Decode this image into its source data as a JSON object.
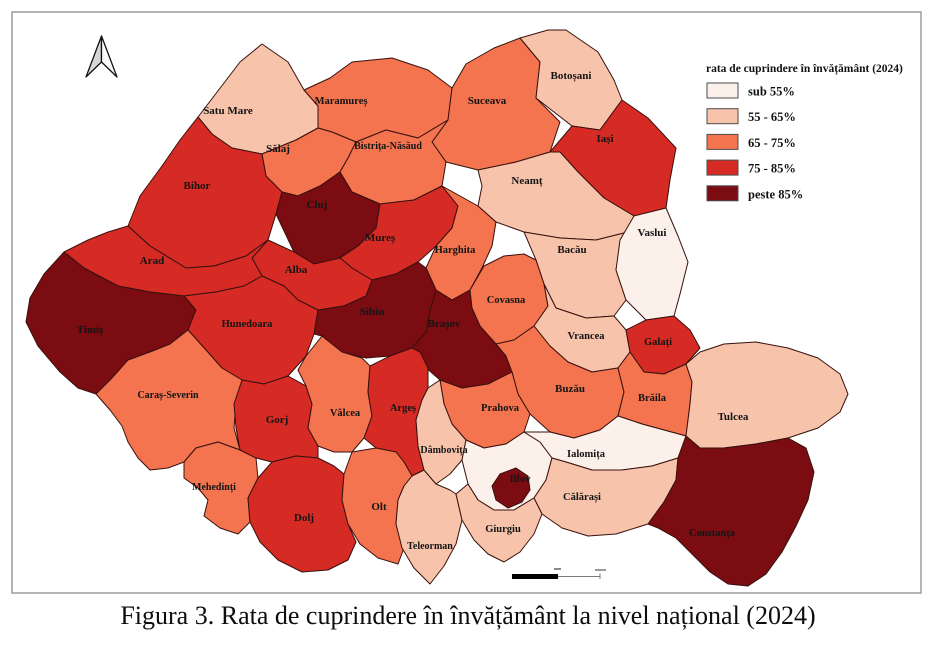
{
  "figure": {
    "caption": "Figura 3. Rata de cuprindere în învățământ la nivel național (2024)"
  },
  "legend": {
    "title": "rata de cuprindere în învățământ (2024)",
    "classes": [
      {
        "id": "c1",
        "label": "sub 55%",
        "color": "#FCF0EA"
      },
      {
        "id": "c2",
        "label": "55 - 65%",
        "color": "#F7C4AB"
      },
      {
        "id": "c3",
        "label": "65 - 75%",
        "color": "#F3744E"
      },
      {
        "id": "c4",
        "label": "75 - 85%",
        "color": "#D52B24"
      },
      {
        "id": "c5",
        "label": "peste 85%",
        "color": "#7A0C12"
      }
    ]
  },
  "map": {
    "border_color": "#38100D",
    "counties": [
      {
        "id": "satu-mare",
        "label": "Satu Mare",
        "class": "c2"
      },
      {
        "id": "maramures",
        "label": "Maramureș",
        "class": "c3"
      },
      {
        "id": "suceava",
        "label": "Suceava",
        "class": "c3"
      },
      {
        "id": "botosani",
        "label": "Botoșani",
        "class": "c2"
      },
      {
        "id": "iasi",
        "label": "Iași",
        "class": "c4"
      },
      {
        "id": "salaj",
        "label": "Sălaj",
        "class": "c3"
      },
      {
        "id": "bistrita-nasaud",
        "label": "Bistrița-Năsăud",
        "class": "c3"
      },
      {
        "id": "neamt",
        "label": "Neamț",
        "class": "c2"
      },
      {
        "id": "bacau",
        "label": "Bacău",
        "class": "c2"
      },
      {
        "id": "vaslui",
        "label": "Vaslui",
        "class": "c1"
      },
      {
        "id": "bihor",
        "label": "Bihor",
        "class": "c4"
      },
      {
        "id": "cluj",
        "label": "Cluj",
        "class": "c5"
      },
      {
        "id": "mures",
        "label": "Mureș",
        "class": "c4"
      },
      {
        "id": "harghita",
        "label": "Harghita",
        "class": "c3"
      },
      {
        "id": "alba",
        "label": "Alba",
        "class": "c4"
      },
      {
        "id": "arad",
        "label": "Arad",
        "class": "c4"
      },
      {
        "id": "timis",
        "label": "Timiș",
        "class": "c5"
      },
      {
        "id": "hunedoara",
        "label": "Hunedoara",
        "class": "c4"
      },
      {
        "id": "caras-severin",
        "label": "Caraș-Severin",
        "class": "c3"
      },
      {
        "id": "sibiu",
        "label": "Sibiu",
        "class": "c5"
      },
      {
        "id": "brasov",
        "label": "Brașov",
        "class": "c5"
      },
      {
        "id": "covasna",
        "label": "Covasna",
        "class": "c3"
      },
      {
        "id": "vrancea",
        "label": "Vrancea",
        "class": "c2"
      },
      {
        "id": "galati",
        "label": "Galați",
        "class": "c4"
      },
      {
        "id": "buzau",
        "label": "Buzău",
        "class": "c3"
      },
      {
        "id": "prahova",
        "label": "Prahova",
        "class": "c3"
      },
      {
        "id": "braila",
        "label": "Brăila",
        "class": "c3"
      },
      {
        "id": "tulcea",
        "label": "Tulcea",
        "class": "c2"
      },
      {
        "id": "mehedinti",
        "label": "Mehedinți",
        "class": "c3"
      },
      {
        "id": "gorj",
        "label": "Gorj",
        "class": "c4"
      },
      {
        "id": "valcea",
        "label": "Vâlcea",
        "class": "c3"
      },
      {
        "id": "arges",
        "label": "Argeș",
        "class": "c4"
      },
      {
        "id": "dolj",
        "label": "Dolj",
        "class": "c4"
      },
      {
        "id": "olt",
        "label": "Olt",
        "class": "c3"
      },
      {
        "id": "teleorman",
        "label": "Teleorman",
        "class": "c2"
      },
      {
        "id": "dambovita",
        "label": "Dâmbovița",
        "class": "c2"
      },
      {
        "id": "ilfov",
        "label": "Ilfov",
        "class": "c1"
      },
      {
        "id": "bucuresti",
        "label": "",
        "class": "c5"
      },
      {
        "id": "ialomita",
        "label": "Ialomița",
        "class": "c1"
      },
      {
        "id": "calarasi",
        "label": "Călărași",
        "class": "c2"
      },
      {
        "id": "giurgiu",
        "label": "Giurgiu",
        "class": "c2"
      },
      {
        "id": "constanta",
        "label": "Constanța",
        "class": "c5"
      }
    ]
  }
}
